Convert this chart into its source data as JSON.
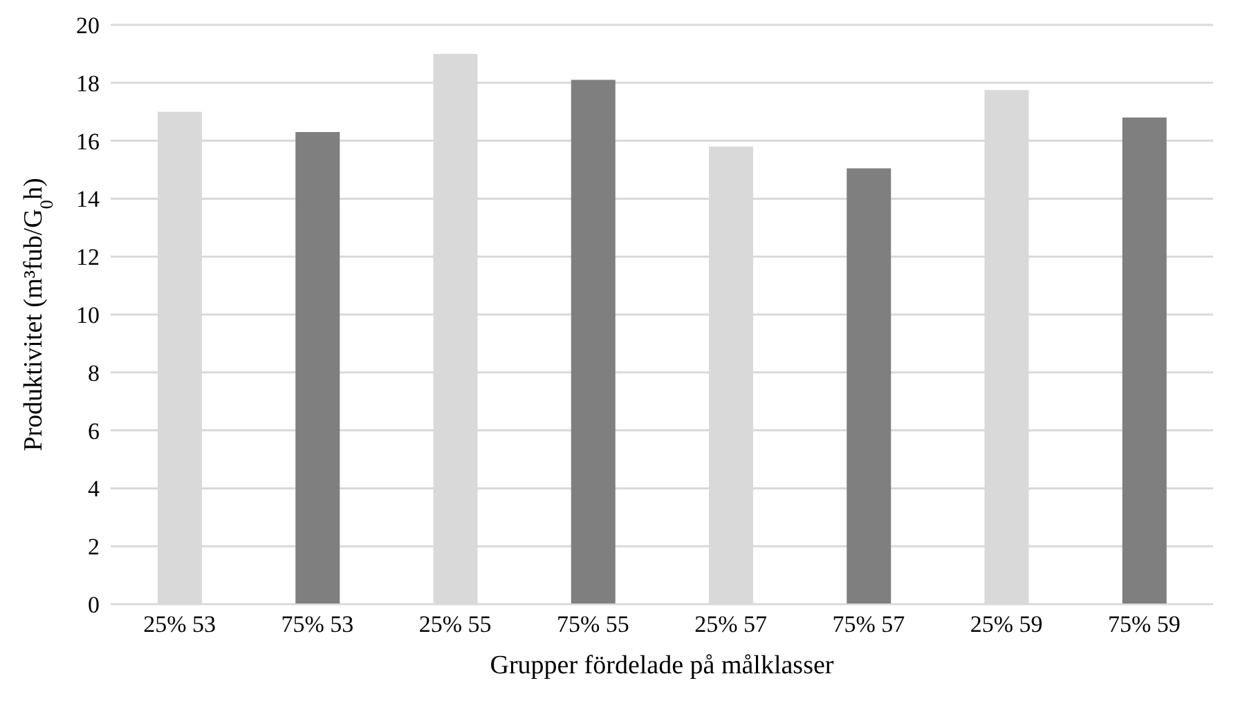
{
  "chart_data": {
    "type": "bar",
    "xlabel": "Grupper fördelade på målklasser",
    "ylabel": "Produktivitet (m³fub/G$_{0}$h)",
    "categories": [
      "25% 53",
      "75% 53",
      "25% 55",
      "75% 55",
      "25% 57",
      "75% 57",
      "25% 59",
      "75% 59"
    ],
    "values": [
      17.0,
      16.3,
      19.0,
      18.1,
      15.8,
      15.05,
      17.75,
      16.8
    ],
    "colors": [
      "#d9d9d9",
      "#7f7f7f",
      "#d9d9d9",
      "#7f7f7f",
      "#d9d9d9",
      "#7f7f7f",
      "#d9d9d9",
      "#7f7f7f"
    ],
    "ylim": [
      0,
      20
    ],
    "yticks": [
      0,
      2,
      4,
      6,
      8,
      10,
      12,
      14,
      16,
      18,
      20
    ],
    "grid": "y"
  }
}
